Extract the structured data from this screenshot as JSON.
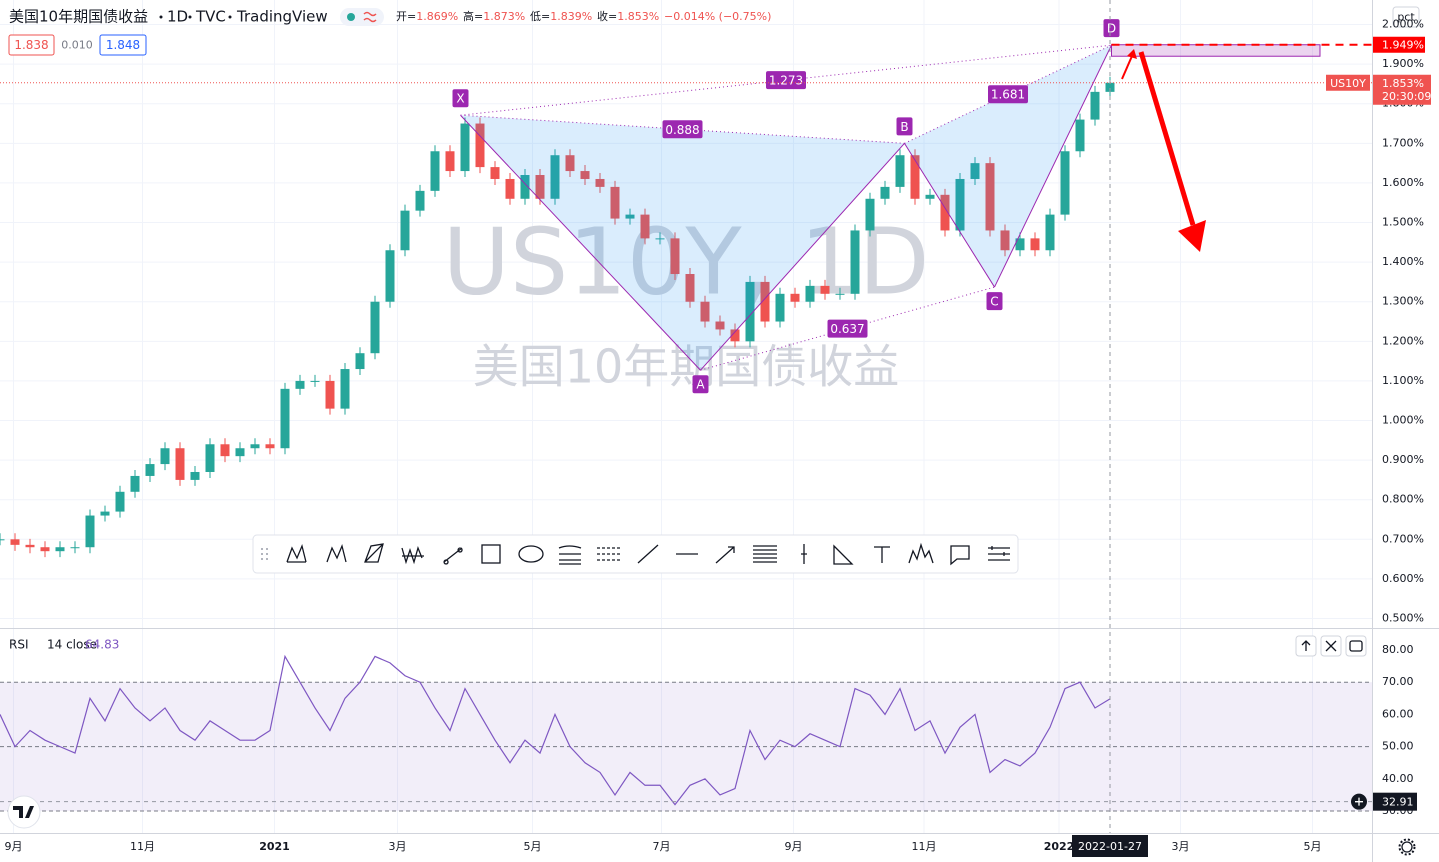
{
  "chart_data": [
    {
      "type": "candlestick",
      "title": "美国10年期国债收益",
      "header": [
        "1D",
        "TVC",
        "TradingView"
      ],
      "ohlc": [
        [
          "开=",
          "1.869%"
        ],
        [
          "高=",
          "1.873%"
        ],
        [
          "低=",
          "1.839%"
        ],
        [
          "收=",
          "1.853%"
        ],
        [
          "",
          "−0.014% (−0.75%)"
        ]
      ],
      "quotes": [
        "1.838",
        "0.010",
        "1.848"
      ],
      "watermark": "US10Y, 1D",
      "symbol": "US10Y",
      "last_label": "1.853%",
      "countdown": "20:30:09",
      "unit_button": "pct",
      "crosshair_date": "2022-01-27",
      "up_color": "#26a69a",
      "down_color": "#ef5350",
      "values": [
        0.7,
        0.686,
        0.68,
        0.67,
        0.68,
        0.68,
        0.76,
        0.77,
        0.82,
        0.86,
        0.89,
        0.93,
        0.85,
        0.87,
        0.94,
        0.91,
        0.93,
        0.94,
        0.93,
        1.08,
        1.1,
        1.1,
        1.03,
        1.13,
        1.17,
        1.3,
        1.43,
        1.53,
        1.58,
        1.68,
        1.63,
        1.75,
        1.64,
        1.61,
        1.56,
        1.62,
        1.56,
        1.67,
        1.63,
        1.61,
        1.59,
        1.51,
        1.52,
        1.46,
        1.46,
        1.37,
        1.3,
        1.25,
        1.23,
        1.2,
        1.35,
        1.25,
        1.32,
        1.3,
        1.34,
        1.32,
        1.32,
        1.48,
        1.56,
        1.59,
        1.67,
        1.56,
        1.57,
        1.48,
        1.61,
        1.65,
        1.48,
        1.43,
        1.46,
        1.43,
        1.52,
        1.68,
        1.76,
        1.83,
        1.853
      ],
      "xlim": [
        0,
        91.4
      ],
      "xticks": [
        {
          "value": 0.9,
          "label": "9月"
        },
        {
          "value": 9.5,
          "label": "11月"
        },
        {
          "value": 18.3,
          "label": "2021"
        },
        {
          "value": 26.5,
          "label": "3月"
        },
        {
          "value": 35.5,
          "label": "5月"
        },
        {
          "value": 44.1,
          "label": "7月"
        },
        {
          "value": 52.9,
          "label": "9月"
        },
        {
          "value": 61.6,
          "label": "11月"
        },
        {
          "value": 70.6,
          "label": "2022"
        },
        {
          "value": 78.7,
          "label": "3月"
        },
        {
          "value": 87.5,
          "label": "5月"
        }
      ],
      "ylim": [
        0.476,
        2.062
      ],
      "yticks": [
        {
          "value": 2.0,
          "label": "2.000%"
        },
        {
          "value": 1.9,
          "label": "1.900%"
        },
        {
          "value": 1.8,
          "label": "1.800%"
        },
        {
          "value": 1.7,
          "label": "1.700%"
        },
        {
          "value": 1.6,
          "label": "1.600%"
        },
        {
          "value": 1.5,
          "label": "1.500%"
        },
        {
          "value": 1.4,
          "label": "1.400%"
        },
        {
          "value": 1.3,
          "label": "1.300%"
        },
        {
          "value": 1.2,
          "label": "1.200%"
        },
        {
          "value": 1.1,
          "label": "1.100%"
        },
        {
          "value": 1.0,
          "label": "1.000%"
        },
        {
          "value": 0.9,
          "label": "0.900%"
        },
        {
          "value": 0.8,
          "label": "0.800%"
        },
        {
          "value": 0.7,
          "label": "0.700%"
        },
        {
          "value": 0.6,
          "label": "0.600%"
        },
        {
          "value": 0.5,
          "label": "0.500%"
        }
      ],
      "grid": true,
      "target": {
        "value": 1.949,
        "label": "1.949%"
      },
      "target_zone": {
        "x": [
          74.1,
          88.0
        ],
        "y": [
          1.92,
          1.949
        ]
      },
      "pattern": {
        "color": "#9c27b0",
        "points": [
          {
            "label": "X",
            "x": 30.7,
            "y": 1.771
          },
          {
            "label": "A",
            "x": 46.7,
            "y": 1.127
          },
          {
            "label": "B",
            "x": 60.3,
            "y": 1.7
          },
          {
            "label": "C",
            "x": 66.3,
            "y": 1.337
          },
          {
            "label": "D",
            "x": 74.1,
            "y": 1.948
          }
        ],
        "ratios": {
          "XB": 0.888,
          "XD": 1.273,
          "AC": 0.637,
          "BD": 1.681
        }
      }
    },
    {
      "type": "line",
      "title": "RSI",
      "params": "14 close",
      "last_label": "64.83",
      "color": "#7e57c2",
      "values": [
        60,
        50,
        55,
        52,
        50,
        48,
        65,
        58,
        68,
        62,
        58,
        62,
        55,
        52,
        58,
        55,
        52,
        52,
        55,
        78,
        70,
        62,
        55,
        65,
        70,
        78,
        76,
        72,
        70,
        62,
        55,
        68,
        60,
        52,
        45,
        52,
        48,
        60,
        50,
        45,
        42,
        35,
        42,
        38,
        38,
        32,
        38,
        40,
        35,
        37,
        55,
        46,
        52,
        50,
        54,
        52,
        50,
        68,
        66,
        60,
        68,
        55,
        58,
        48,
        56,
        60,
        42,
        46,
        44,
        48,
        56,
        68,
        70,
        62,
        64.83
      ],
      "xlim": [
        0,
        91.4
      ],
      "ylim": [
        23.5,
        86.2
      ],
      "yticks": [
        {
          "value": 80,
          "label": "80.00"
        },
        {
          "value": 70,
          "label": "70.00"
        },
        {
          "value": 60,
          "label": "60.00"
        },
        {
          "value": 50,
          "label": "50.00"
        },
        {
          "value": 40,
          "label": "40.00"
        },
        {
          "value": 30,
          "label": "30.00"
        }
      ],
      "bands": [
        70,
        50,
        30
      ],
      "crosshair": {
        "value": 32.91,
        "label": "32.91"
      }
    }
  ]
}
